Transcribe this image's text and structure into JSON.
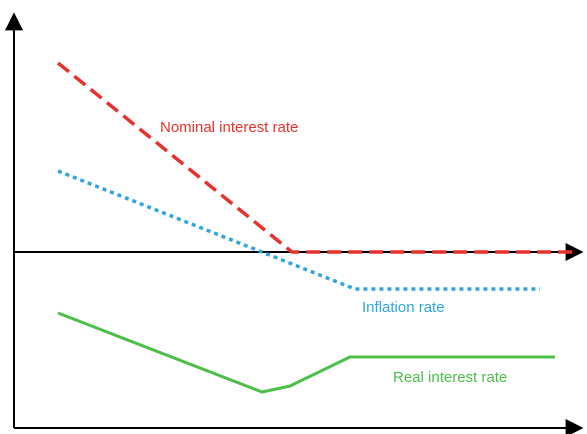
{
  "chart_data": {
    "type": "line",
    "title": "",
    "xlabel": "",
    "ylabel": "",
    "grid": false,
    "legend": "none",
    "series": [
      {
        "name": "Nominal interest rate",
        "color": "#e8312c",
        "style": "dashed",
        "points": [
          [
            58,
            63
          ],
          [
            292,
            252
          ],
          [
            577,
            252
          ]
        ]
      },
      {
        "name": "Inflation rate",
        "color": "#2fa5dc",
        "style": "dotted",
        "points": [
          [
            58,
            171
          ],
          [
            355,
            289
          ],
          [
            540,
            289
          ]
        ]
      },
      {
        "name": "Real interest rate",
        "color": "#4bbf4a",
        "style": "solid",
        "points": [
          [
            58,
            313
          ],
          [
            262,
            392
          ],
          [
            290,
            386
          ],
          [
            350,
            357
          ],
          [
            555,
            357
          ]
        ]
      }
    ]
  }
}
